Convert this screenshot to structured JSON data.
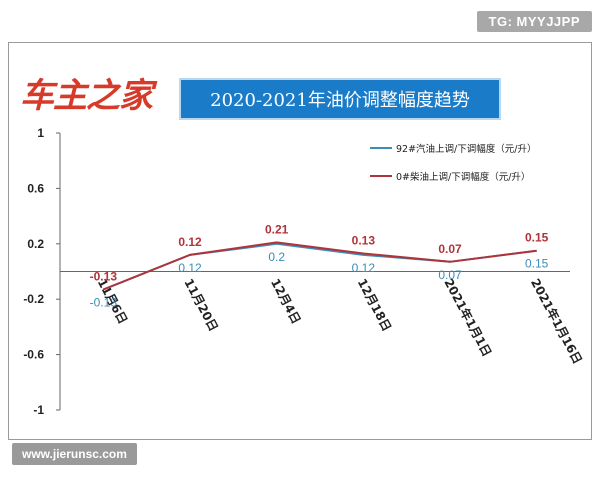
{
  "watermarks": {
    "top": "TG: MYYJJPP",
    "bottom": "www.jierunsc.com"
  },
  "header": {
    "logo": "车主之家",
    "title": "2020-2021年油价调整幅度趋势"
  },
  "colors": {
    "gasoline": "#3b8db8",
    "diesel": "#b0333a",
    "banner": "#1a7cc9",
    "logo": "#d83a2a"
  },
  "chart_data": {
    "type": "line",
    "title": "2020-2021年油价调整幅度趋势",
    "categories": [
      "11月6日",
      "11月20日",
      "12月4日",
      "12月18日",
      "2021年1月1日",
      "2021年1月16日"
    ],
    "series": [
      {
        "name": "92#汽油上调/下调幅度（元/升）",
        "values": [
          -0.13,
          0.12,
          0.2,
          0.12,
          0.07,
          0.15
        ],
        "color": "#3b8db8"
      },
      {
        "name": "0#柴油上调/下调幅度（元/升）",
        "values": [
          -0.13,
          0.12,
          0.21,
          0.13,
          0.07,
          0.15
        ],
        "color": "#b0333a"
      }
    ],
    "ylim": [
      -1,
      1
    ],
    "yticks": [
      1,
      0.6,
      0.2,
      -0.2,
      -0.6,
      -1
    ],
    "ytick_labels": [
      "1",
      "0.6",
      "0.2",
      "-0.2",
      "-0.6",
      "-1"
    ],
    "grid": false,
    "legend": "top-right"
  }
}
